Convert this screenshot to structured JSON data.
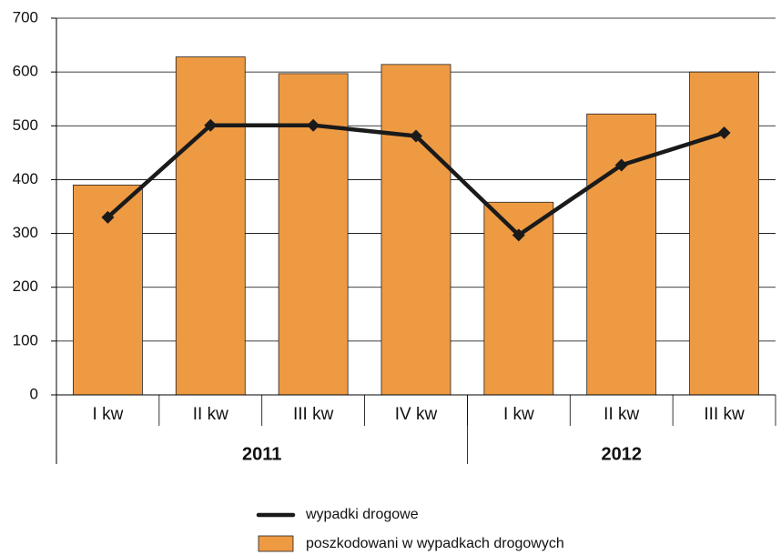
{
  "chart_data": {
    "type": "bar",
    "groups": [
      {
        "label": "2011",
        "categories": [
          "I kw",
          "II kw",
          "III kw",
          "IV kw"
        ]
      },
      {
        "label": "2012",
        "categories": [
          "I kw",
          "II kw",
          "III kw"
        ]
      }
    ],
    "series": [
      {
        "name": "poszkodowani w wypadkach drogowych",
        "type": "bar",
        "color": "#ee9a43",
        "values": [
          390,
          628,
          597,
          614,
          358,
          522,
          600
        ]
      },
      {
        "name": "wypadki drogowe",
        "type": "line",
        "color": "#1a1a1a",
        "values": [
          330,
          501,
          501,
          481,
          297,
          427,
          487
        ]
      }
    ],
    "ylim": [
      0,
      700
    ],
    "yticks": [
      0,
      100,
      200,
      300,
      400,
      500,
      600,
      700
    ],
    "grid": true,
    "legend": "bottom"
  }
}
